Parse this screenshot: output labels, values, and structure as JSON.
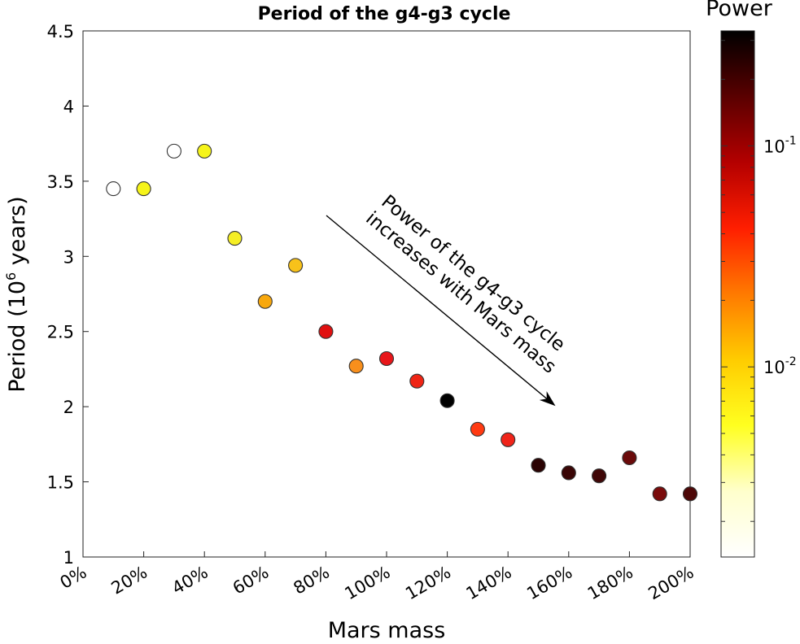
{
  "chart_data": {
    "type": "scatter",
    "title": "Period of the g4-g3 cycle",
    "xlabel": "Mars mass",
    "ylabel_main": "Period (10",
    "ylabel_sup": "6",
    "ylabel_end": " years)",
    "x_tick_labels": [
      "0%",
      "20%",
      "40%",
      "60%",
      "80%",
      "100%",
      "120%",
      "140%",
      "160%",
      "180%",
      "200%"
    ],
    "x_ticks": [
      0,
      20,
      40,
      60,
      80,
      100,
      120,
      140,
      160,
      180,
      200
    ],
    "xlim": [
      0,
      200
    ],
    "y_tick_labels": [
      "1",
      "1.5",
      "2",
      "2.5",
      "3",
      "3.5",
      "4",
      "4.5"
    ],
    "y_ticks": [
      1,
      1.5,
      2,
      2.5,
      3,
      3.5,
      4,
      4.5
    ],
    "ylim": [
      1,
      4.5
    ],
    "points": [
      {
        "x": 10,
        "y": 3.45,
        "color": "#ffffff"
      },
      {
        "x": 20,
        "y": 3.45,
        "color": "#f6f41a"
      },
      {
        "x": 30,
        "y": 3.7,
        "color": "#ffffff"
      },
      {
        "x": 40,
        "y": 3.7,
        "color": "#f6f41a"
      },
      {
        "x": 50,
        "y": 3.12,
        "color": "#f5ee25"
      },
      {
        "x": 60,
        "y": 2.7,
        "color": "#f8a80d"
      },
      {
        "x": 70,
        "y": 2.94,
        "color": "#f8c21a"
      },
      {
        "x": 80,
        "y": 2.5,
        "color": "#e01010"
      },
      {
        "x": 90,
        "y": 2.27,
        "color": "#f88f1c"
      },
      {
        "x": 100,
        "y": 2.32,
        "color": "#e8161a"
      },
      {
        "x": 110,
        "y": 2.17,
        "color": "#ef2515"
      },
      {
        "x": 120,
        "y": 2.04,
        "color": "#000000"
      },
      {
        "x": 130,
        "y": 1.85,
        "color": "#ff3a12"
      },
      {
        "x": 140,
        "y": 1.78,
        "color": "#f0241a"
      },
      {
        "x": 150,
        "y": 1.61,
        "color": "#2a0202"
      },
      {
        "x": 160,
        "y": 1.56,
        "color": "#3a0606"
      },
      {
        "x": 170,
        "y": 1.54,
        "color": "#400707"
      },
      {
        "x": 180,
        "y": 1.66,
        "color": "#6a0a0a"
      },
      {
        "x": 190,
        "y": 1.42,
        "color": "#7a0b0b"
      },
      {
        "x": 200,
        "y": 1.42,
        "color": "#4d0707"
      }
    ],
    "annotation_lines": [
      "Power of the g4-g3 cycle",
      "increases with Mars mass"
    ],
    "colorbar": {
      "label": "Power",
      "scale": "log",
      "tick_base": "10",
      "tick_exps": [
        "-1",
        "-2"
      ],
      "stops": [
        "#000000",
        "#5a0000",
        "#b40000",
        "#ff1e00",
        "#ff7a00",
        "#ffcc00",
        "#ffff20",
        "#ffffcc",
        "#ffffff"
      ]
    }
  }
}
